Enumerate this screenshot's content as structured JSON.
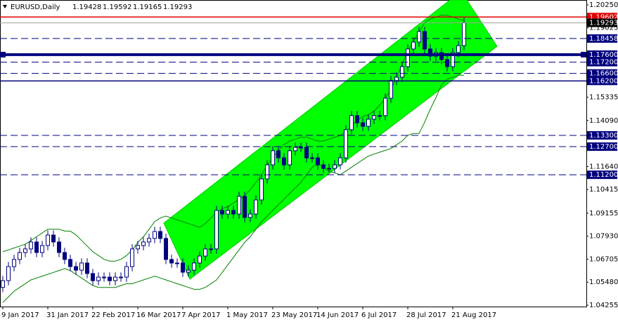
{
  "chart_data": {
    "type": "candlestick",
    "header": {
      "symbol": "EURUSD,Daily",
      "open": "1.19428",
      "high": "1.19592",
      "low": "1.19165",
      "close": "1.19293"
    },
    "categories": [
      "9 Jan 2017",
      null,
      null,
      null,
      null,
      null,
      null,
      null,
      "31 Jan 2017",
      null,
      null,
      null,
      null,
      null,
      null,
      null,
      "22 Feb 2017",
      null,
      null,
      null,
      null,
      null,
      null,
      null,
      "16 Mar 2017",
      null,
      null,
      null,
      null,
      null,
      null,
      null,
      "7 Apr 2017",
      null,
      null,
      null,
      null,
      null,
      null,
      null,
      "1 May 2017",
      null,
      null,
      null,
      null,
      null,
      null,
      null,
      "23 May 2017",
      null,
      null,
      null,
      null,
      null,
      null,
      null,
      "14 Jun 2017",
      null,
      null,
      null,
      null,
      null,
      null,
      null,
      "6 Jul 2017",
      null,
      null,
      null,
      null,
      null,
      null,
      null,
      "28 Jul 2017",
      null,
      null,
      null,
      null,
      null,
      null,
      null,
      "21 Aug 2017",
      null,
      null
    ],
    "open": [
      1.052,
      1.0556,
      1.0631,
      1.0669,
      1.0706,
      1.0725,
      1.0762,
      1.0706,
      1.0743,
      1.0799,
      1.0762,
      1.0706,
      1.0669,
      1.0631,
      1.0612,
      1.065,
      1.0594,
      1.0556,
      1.0575,
      1.0575,
      1.0556,
      1.0575,
      1.0575,
      1.0631,
      1.0725,
      1.0743,
      1.0762,
      1.0781,
      1.0818,
      1.0781,
      1.0669,
      1.065,
      1.065,
      1.0601,
      1.0612,
      1.065,
      1.0687,
      1.0725,
      1.0725,
      1.093,
      1.0911,
      1.093,
      1.0911,
      1.1005,
      1.0893,
      1.0911,
      1.0986,
      1.1098,
      1.1173,
      1.1248,
      1.121,
      1.1173,
      1.1248,
      1.1266,
      1.1266,
      1.121,
      1.121,
      1.1173,
      1.1154,
      1.1154,
      1.1173,
      1.121,
      1.136,
      1.1435,
      1.1397,
      1.1378,
      1.1416,
      1.1435,
      1.1435,
      1.1528,
      1.1622,
      1.164,
      1.1696,
      1.179,
      1.1827,
      1.1883,
      1.179,
      1.1752,
      1.1771,
      1.1734,
      1.1696,
      1.1771,
      1.1808
    ],
    "high": [
      1.0581,
      1.0656,
      1.0694,
      1.0731,
      1.075,
      1.0787,
      1.0787,
      1.0768,
      1.0824,
      1.0824,
      1.0787,
      1.0731,
      1.0694,
      1.0656,
      1.0675,
      1.0675,
      1.0619,
      1.06,
      1.06,
      1.06,
      1.06,
      1.06,
      1.0656,
      1.075,
      1.0768,
      1.0787,
      1.0806,
      1.0843,
      1.0843,
      1.0806,
      1.0694,
      1.0675,
      1.0675,
      1.0637,
      1.0675,
      1.0712,
      1.075,
      1.075,
      1.0955,
      1.0955,
      1.0955,
      1.0955,
      1.103,
      1.103,
      1.0936,
      1.1011,
      1.1123,
      1.1198,
      1.1273,
      1.1273,
      1.1235,
      1.1273,
      1.1291,
      1.1291,
      1.1291,
      1.1235,
      1.1235,
      1.1198,
      1.1179,
      1.1198,
      1.1235,
      1.1385,
      1.146,
      1.146,
      1.1422,
      1.1441,
      1.146,
      1.146,
      1.1553,
      1.1647,
      1.1665,
      1.1721,
      1.1815,
      1.1852,
      1.1908,
      1.1908,
      1.1815,
      1.1796,
      1.1796,
      1.1759,
      1.1796,
      1.1833,
      1.1959
    ],
    "low": [
      1.0495,
      1.0531,
      1.0606,
      1.0644,
      1.0681,
      1.07,
      1.0681,
      1.0681,
      1.0718,
      1.0737,
      1.0681,
      1.0644,
      1.0606,
      1.0587,
      1.0587,
      1.0569,
      1.0531,
      1.0531,
      1.055,
      1.0531,
      1.0531,
      1.055,
      1.055,
      1.0606,
      1.07,
      1.0718,
      1.0737,
      1.0756,
      1.0756,
      1.0644,
      1.0625,
      1.0625,
      1.0576,
      1.0576,
      1.0587,
      1.0625,
      1.0662,
      1.07,
      1.07,
      1.0886,
      1.0886,
      1.0886,
      1.0886,
      1.0868,
      1.0868,
      1.0886,
      1.0961,
      1.1073,
      1.1148,
      1.1185,
      1.1148,
      1.1148,
      1.1223,
      1.1241,
      1.1185,
      1.1185,
      1.1148,
      1.1129,
      1.1129,
      1.1129,
      1.1148,
      1.1185,
      1.1335,
      1.1372,
      1.1353,
      1.1353,
      1.1391,
      1.141,
      1.141,
      1.1503,
      1.1597,
      1.1615,
      1.1671,
      1.1765,
      1.1802,
      1.1765,
      1.1727,
      1.1727,
      1.1709,
      1.1671,
      1.1671,
      1.1746,
      1.1783
    ],
    "close": [
      1.0556,
      1.0631,
      1.0669,
      1.0706,
      1.0725,
      1.0762,
      1.0706,
      1.0743,
      1.0799,
      1.0762,
      1.0706,
      1.0669,
      1.0631,
      1.0612,
      1.065,
      1.0594,
      1.0556,
      1.0575,
      1.0575,
      1.0556,
      1.0575,
      1.0575,
      1.0631,
      1.0725,
      1.0743,
      1.0762,
      1.0781,
      1.0818,
      1.0781,
      1.0669,
      1.065,
      1.065,
      1.0601,
      1.0612,
      1.065,
      1.0687,
      1.0725,
      1.0725,
      1.093,
      1.0911,
      1.093,
      1.0911,
      1.1005,
      1.0893,
      1.0911,
      1.0986,
      1.1098,
      1.1173,
      1.1248,
      1.121,
      1.1173,
      1.1248,
      1.1266,
      1.1266,
      1.121,
      1.121,
      1.1173,
      1.1154,
      1.1154,
      1.1173,
      1.121,
      1.136,
      1.1435,
      1.1397,
      1.1378,
      1.1416,
      1.1435,
      1.1435,
      1.1528,
      1.1622,
      1.164,
      1.1696,
      1.179,
      1.1827,
      1.1883,
      1.179,
      1.1752,
      1.1771,
      1.1734,
      1.1696,
      1.1771,
      1.1808,
      1.1929
    ],
    "candle_color": "#00007f",
    "bands": {
      "color": "#008000",
      "upper": [
        1.071,
        1.072,
        1.073,
        1.074,
        1.075,
        1.077,
        1.079,
        1.081,
        1.083,
        1.083,
        1.083,
        1.082,
        1.082,
        1.08,
        1.077,
        1.074,
        1.071,
        1.069,
        1.067,
        1.066,
        1.066,
        1.067,
        1.069,
        1.072,
        1.076,
        1.079,
        1.083,
        1.087,
        1.089,
        1.09,
        1.089,
        1.088,
        1.087,
        1.086,
        1.085,
        1.084,
        1.086,
        1.089,
        1.092,
        1.094,
        1.095,
        1.097,
        1.099,
        1.101,
        1.104,
        1.108,
        1.112,
        1.117,
        1.121,
        1.125,
        1.128,
        1.13,
        1.131,
        1.132,
        1.132,
        1.131,
        1.13,
        1.13,
        1.131,
        1.132,
        1.133,
        1.135,
        1.138,
        1.141,
        1.143,
        1.144,
        1.146,
        1.149,
        1.153,
        1.157,
        1.164,
        1.171,
        1.178,
        1.183,
        1.188,
        1.193,
        1.195,
        1.196,
        1.197,
        1.197,
        1.196,
        1.195,
        1.194
      ],
      "lower": [
        1.044,
        1.047,
        1.05,
        1.052,
        1.054,
        1.056,
        1.057,
        1.058,
        1.059,
        1.06,
        1.061,
        1.062,
        1.061,
        1.059,
        1.057,
        1.055,
        1.053,
        1.052,
        1.052,
        1.052,
        1.052,
        1.053,
        1.054,
        1.054,
        1.055,
        1.056,
        1.057,
        1.058,
        1.057,
        1.056,
        1.055,
        1.054,
        1.053,
        1.052,
        1.051,
        1.051,
        1.052,
        1.054,
        1.056,
        1.06,
        1.064,
        1.068,
        1.072,
        1.076,
        1.079,
        1.083,
        1.087,
        1.09,
        1.093,
        1.096,
        1.099,
        1.102,
        1.105,
        1.108,
        1.112,
        1.116,
        1.118,
        1.116,
        1.114,
        1.113,
        1.112,
        1.114,
        1.116,
        1.118,
        1.12,
        1.122,
        1.123,
        1.124,
        1.125,
        1.126,
        1.128,
        1.13,
        1.133,
        1.134,
        1.134,
        1.14,
        1.147,
        1.153,
        1.16,
        1.163,
        1.164,
        1.165,
        1.165
      ]
    },
    "levels": [
      {
        "value": 1.19602,
        "label": "1.19602",
        "style": "solid",
        "color": "#e00000"
      },
      {
        "value": 1.19293,
        "label": "1.19293",
        "style": "price",
        "color": "#000000"
      },
      {
        "value": 1.18458,
        "label": "1.18458",
        "style": "dashed",
        "color": "#00007f"
      },
      {
        "value": 1.176,
        "label": "1.17600",
        "style": "thick",
        "color": "#00007f"
      },
      {
        "value": 1.172,
        "label": "1.17200",
        "style": "dashed",
        "color": "#00007f"
      },
      {
        "value": 1.166,
        "label": "1.16600",
        "style": "dashed",
        "color": "#00007f"
      },
      {
        "value": 1.162,
        "label": "1.16200",
        "style": "solid",
        "color": "#00007f"
      },
      {
        "value": 1.133,
        "label": "1.13300",
        "style": "dashed",
        "color": "#00007f"
      },
      {
        "value": 1.127,
        "label": "1.12700",
        "style": "dashed",
        "color": "#00007f"
      },
      {
        "value": 1.112,
        "label": "1.11200",
        "style": "dashed",
        "color": "#00007f"
      }
    ],
    "ylim": [
      1.0418,
      1.2051
    ],
    "yticks": [
      {
        "value": 1.2025,
        "label": "1.20250"
      },
      {
        "value": 1.19025,
        "label": "1.19025"
      },
      {
        "value": 1.15335,
        "label": "1.15335"
      },
      {
        "value": 1.1409,
        "label": "1.14090"
      },
      {
        "value": 1.1164,
        "label": "1.11640"
      },
      {
        "value": 1.10415,
        "label": "1.10415"
      },
      {
        "value": 1.09155,
        "label": "1.09155"
      },
      {
        "value": 1.0793,
        "label": "1.07930"
      },
      {
        "value": 1.06705,
        "label": "1.06705"
      },
      {
        "value": 1.0548,
        "label": "1.05480"
      },
      {
        "value": 1.04255,
        "label": "1.04255"
      }
    ]
  }
}
